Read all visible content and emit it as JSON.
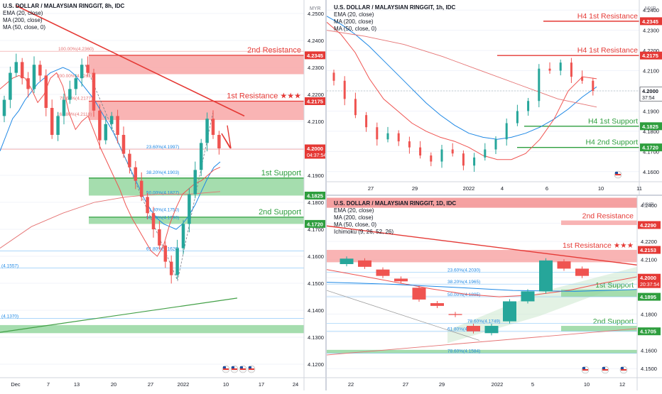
{
  "panels": [
    {
      "id": "p8h",
      "legend": [
        "U.S. DOLLAR / MALAYSIAN RINGGIT, 8h, IDC",
        "EMA (20, close)",
        "MA (200, close)",
        "MA (50, close, 0)"
      ],
      "currency": "MYR",
      "price_axis": {
        "min": 4.115,
        "max": 4.255,
        "ticks": [
          4.12,
          4.13,
          4.14,
          4.15,
          4.16,
          4.17,
          4.18,
          4.19,
          4.2,
          4.21,
          4.22,
          4.23,
          4.24,
          4.25
        ]
      },
      "x_labels": [
        "Dec",
        "7",
        "13",
        "20",
        "27",
        "2022",
        "10",
        "17",
        "24"
      ],
      "zones": [
        {
          "label": "2nd Resistance",
          "top": 4.2345,
          "bottom": 4.2275,
          "color": "#f7a1a1",
          "label_color": "#e53935"
        },
        {
          "label": "1st Resistance ★★★",
          "top": 4.2175,
          "bottom": 4.2105,
          "color": "#f7a1a1",
          "label_color": "#e53935"
        },
        {
          "label": "1st Support",
          "top": 4.189,
          "bottom": 4.1825,
          "color": "#8fd49a",
          "label_color": "#2e9e3e"
        },
        {
          "label": "2nd Support",
          "top": 4.1745,
          "bottom": 4.172,
          "color": "#8fd49a",
          "label_color": "#2e9e3e"
        },
        {
          "label": "",
          "top": 4.1345,
          "bottom": 4.1315,
          "color": "#8fd49a",
          "label_color": "#2e9e3e"
        }
      ],
      "fib_labels": [
        "100.00%(4.2360)",
        "200.00%(4.2261)",
        "78.60%(4.2177)",
        "161.80%(4.2118)",
        "23.60%(4.1997)",
        "38.20%(4.1903)",
        "50.00%(4.1827)",
        "61.80%(4.1750)",
        "50.00%(4.1790)",
        "61.80%(4.1620)",
        "(4.1557)",
        "(4.1370)"
      ],
      "price_badges": [
        {
          "text": "4.2345",
          "color": "#e53935"
        },
        {
          "text": "4.2175",
          "color": "#e53935"
        },
        {
          "text": "4.2000",
          "sub": "04:37:54",
          "color": "#e53935"
        },
        {
          "text": "4.1825",
          "color": "#2e9e3e"
        },
        {
          "text": "4.1720",
          "color": "#2e9e3e"
        }
      ]
    },
    {
      "id": "p1h",
      "legend": [
        "U.S. DOLLAR / MALAYSIAN RINGGIT, 1h, IDC",
        "EMA (20, close)",
        "MA (200, close)",
        "MA (50, close, 0)"
      ],
      "currency": "MYR",
      "price_axis": {
        "min": 4.155,
        "max": 4.245,
        "ticks": [
          4.16,
          4.17,
          4.18,
          4.19,
          4.2,
          4.21,
          4.22,
          4.23,
          4.24
        ]
      },
      "x_labels": [
        "27",
        "29",
        "2022",
        "4",
        "6",
        "10",
        "11"
      ],
      "levels": [
        {
          "label": "H4 1st Resistance",
          "value": 4.2345,
          "color": "#e53935"
        },
        {
          "label": "H4 1st Resistance",
          "value": 4.2175,
          "color": "#e53935"
        },
        {
          "label": "H4 1st Support",
          "value": 4.1825,
          "color": "#2e9e3e"
        },
        {
          "label": "H4 2nd Support",
          "value": 4.172,
          "color": "#2e9e3e"
        }
      ],
      "price_badges": [
        {
          "text": "4.2345",
          "color": "#e53935"
        },
        {
          "text": "4.2175",
          "color": "#e53935"
        },
        {
          "text": "4.2000",
          "sub": "37:54",
          "color": "#ffffff",
          "text_color": "#131722"
        },
        {
          "text": "4.1825",
          "color": "#2e9e3e"
        },
        {
          "text": "4.1720",
          "color": "#2e9e3e"
        }
      ]
    },
    {
      "id": "p1d",
      "legend": [
        "U.S. DOLLAR / MALAYSIAN RINGGIT, 1D, IDC",
        "EMA (20, close)",
        "MA (200, close)",
        "MA (50, close, 0)",
        "Ichimoku (9, 26, 52, 26)"
      ],
      "currency": "MYR",
      "price_axis": {
        "min": 4.145,
        "max": 4.245,
        "ticks": [
          4.15,
          4.16,
          4.17,
          4.18,
          4.19,
          4.2,
          4.21,
          4.22,
          4.23,
          4.24
        ]
      },
      "x_labels": [
        "22",
        "27",
        "29",
        "2022",
        "5",
        "10",
        "12"
      ],
      "zones": [
        {
          "label": "",
          "top": 4.244,
          "bottom": 4.2385,
          "color": "#f28a8a",
          "label_color": "#e53935"
        },
        {
          "label": "2nd Resistance",
          "top": 4.2315,
          "bottom": 4.229,
          "color": "#f7a1a1",
          "label_color": "#e53935"
        },
        {
          "label": "1st Resistance ★★★",
          "top": 4.2153,
          "bottom": 4.2085,
          "color": "#f7a1a1",
          "label_color": "#e53935"
        },
        {
          "label": "1st Support",
          "top": 4.1935,
          "bottom": 4.1895,
          "color": "#8fd49a",
          "label_color": "#2e9e3e"
        },
        {
          "label": "2nd Support",
          "top": 4.1735,
          "bottom": 4.1705,
          "color": "#8fd49a",
          "label_color": "#2e9e3e"
        },
        {
          "label": "",
          "top": 4.1603,
          "bottom": 4.1584,
          "color": "#8fd49a",
          "label_color": "#2e9e3e"
        }
      ],
      "fib_labels": [
        "23.60%(4.2030)",
        "38.20%(4.1965)",
        "50.00%(4.1895)",
        "78.60%(4.1749)",
        "61.80%(4.1705)",
        "78.60%(4.1584)"
      ],
      "price_badges": [
        {
          "text": "4.2290",
          "color": "#e53935"
        },
        {
          "text": "4.2153",
          "color": "#e53935"
        },
        {
          "text": "4.2000",
          "sub": "20:37:54",
          "color": "#e53935"
        },
        {
          "text": "4.1895",
          "color": "#2e9e3e"
        },
        {
          "text": "4.1705",
          "color": "#2e9e3e"
        }
      ]
    }
  ],
  "chart_data": [
    {
      "type": "candlestick",
      "title": "U.S. DOLLAR / MALAYSIAN RINGGIT, 8h, IDC",
      "ylim": [
        4.115,
        4.255
      ],
      "x_labels": [
        "Dec",
        "7",
        "13",
        "20",
        "27",
        "2022",
        "10",
        "17",
        "24"
      ],
      "close_approx": [
        4.218,
        4.228,
        4.232,
        4.226,
        4.222,
        4.231,
        4.227,
        4.215,
        4.205,
        4.212,
        4.218,
        4.222,
        4.226,
        4.231,
        4.228,
        4.214,
        4.203,
        4.209,
        4.212,
        4.205,
        4.198,
        4.193,
        4.188,
        4.182,
        4.176,
        4.17,
        4.164,
        4.158,
        4.153,
        4.163,
        4.172,
        4.183,
        4.192,
        4.202,
        4.211,
        4.205,
        4.2
      ],
      "last_price": 4.2
    },
    {
      "type": "candlestick",
      "title": "U.S. DOLLAR / MALAYSIAN RINGGIT, 1h, IDC",
      "ylim": [
        4.155,
        4.245
      ],
      "x_labels": [
        "27",
        "29",
        "2022",
        "4",
        "6",
        "10",
        "11"
      ],
      "close_approx": [
        4.205,
        4.196,
        4.188,
        4.182,
        4.176,
        4.179,
        4.175,
        4.172,
        4.168,
        4.165,
        4.171,
        4.169,
        4.163,
        4.167,
        4.171,
        4.176,
        4.184,
        4.19,
        4.195,
        4.211,
        4.21,
        4.214,
        4.207,
        4.205,
        4.2
      ],
      "last_price": 4.2
    },
    {
      "type": "candlestick",
      "title": "U.S. DOLLAR / MALAYSIAN RINGGIT, 1D, IDC",
      "ylim": [
        4.145,
        4.245
      ],
      "x_labels": [
        "22",
        "27",
        "29",
        "2022",
        "5",
        "10",
        "12"
      ],
      "candles": [
        {
          "o": 4.2075,
          "c": 4.2105
        },
        {
          "o": 4.2095,
          "c": 4.206
        },
        {
          "o": 4.2045,
          "c": 4.201
        },
        {
          "o": 4.1995,
          "c": 4.198
        },
        {
          "o": 4.1945,
          "c": 4.188
        },
        {
          "o": 4.186,
          "c": 4.1845
        },
        {
          "o": 4.18,
          "c": 4.1795
        },
        {
          "o": 4.1735,
          "c": 4.1705
        },
        {
          "o": 4.1695,
          "c": 4.1735
        },
        {
          "o": 4.176,
          "c": 4.187
        },
        {
          "o": 4.187,
          "c": 4.1925
        },
        {
          "o": 4.1925,
          "c": 4.2095
        },
        {
          "o": 4.209,
          "c": 4.205
        },
        {
          "o": 4.205,
          "c": 4.201
        }
      ],
      "last_price": 4.2
    }
  ]
}
